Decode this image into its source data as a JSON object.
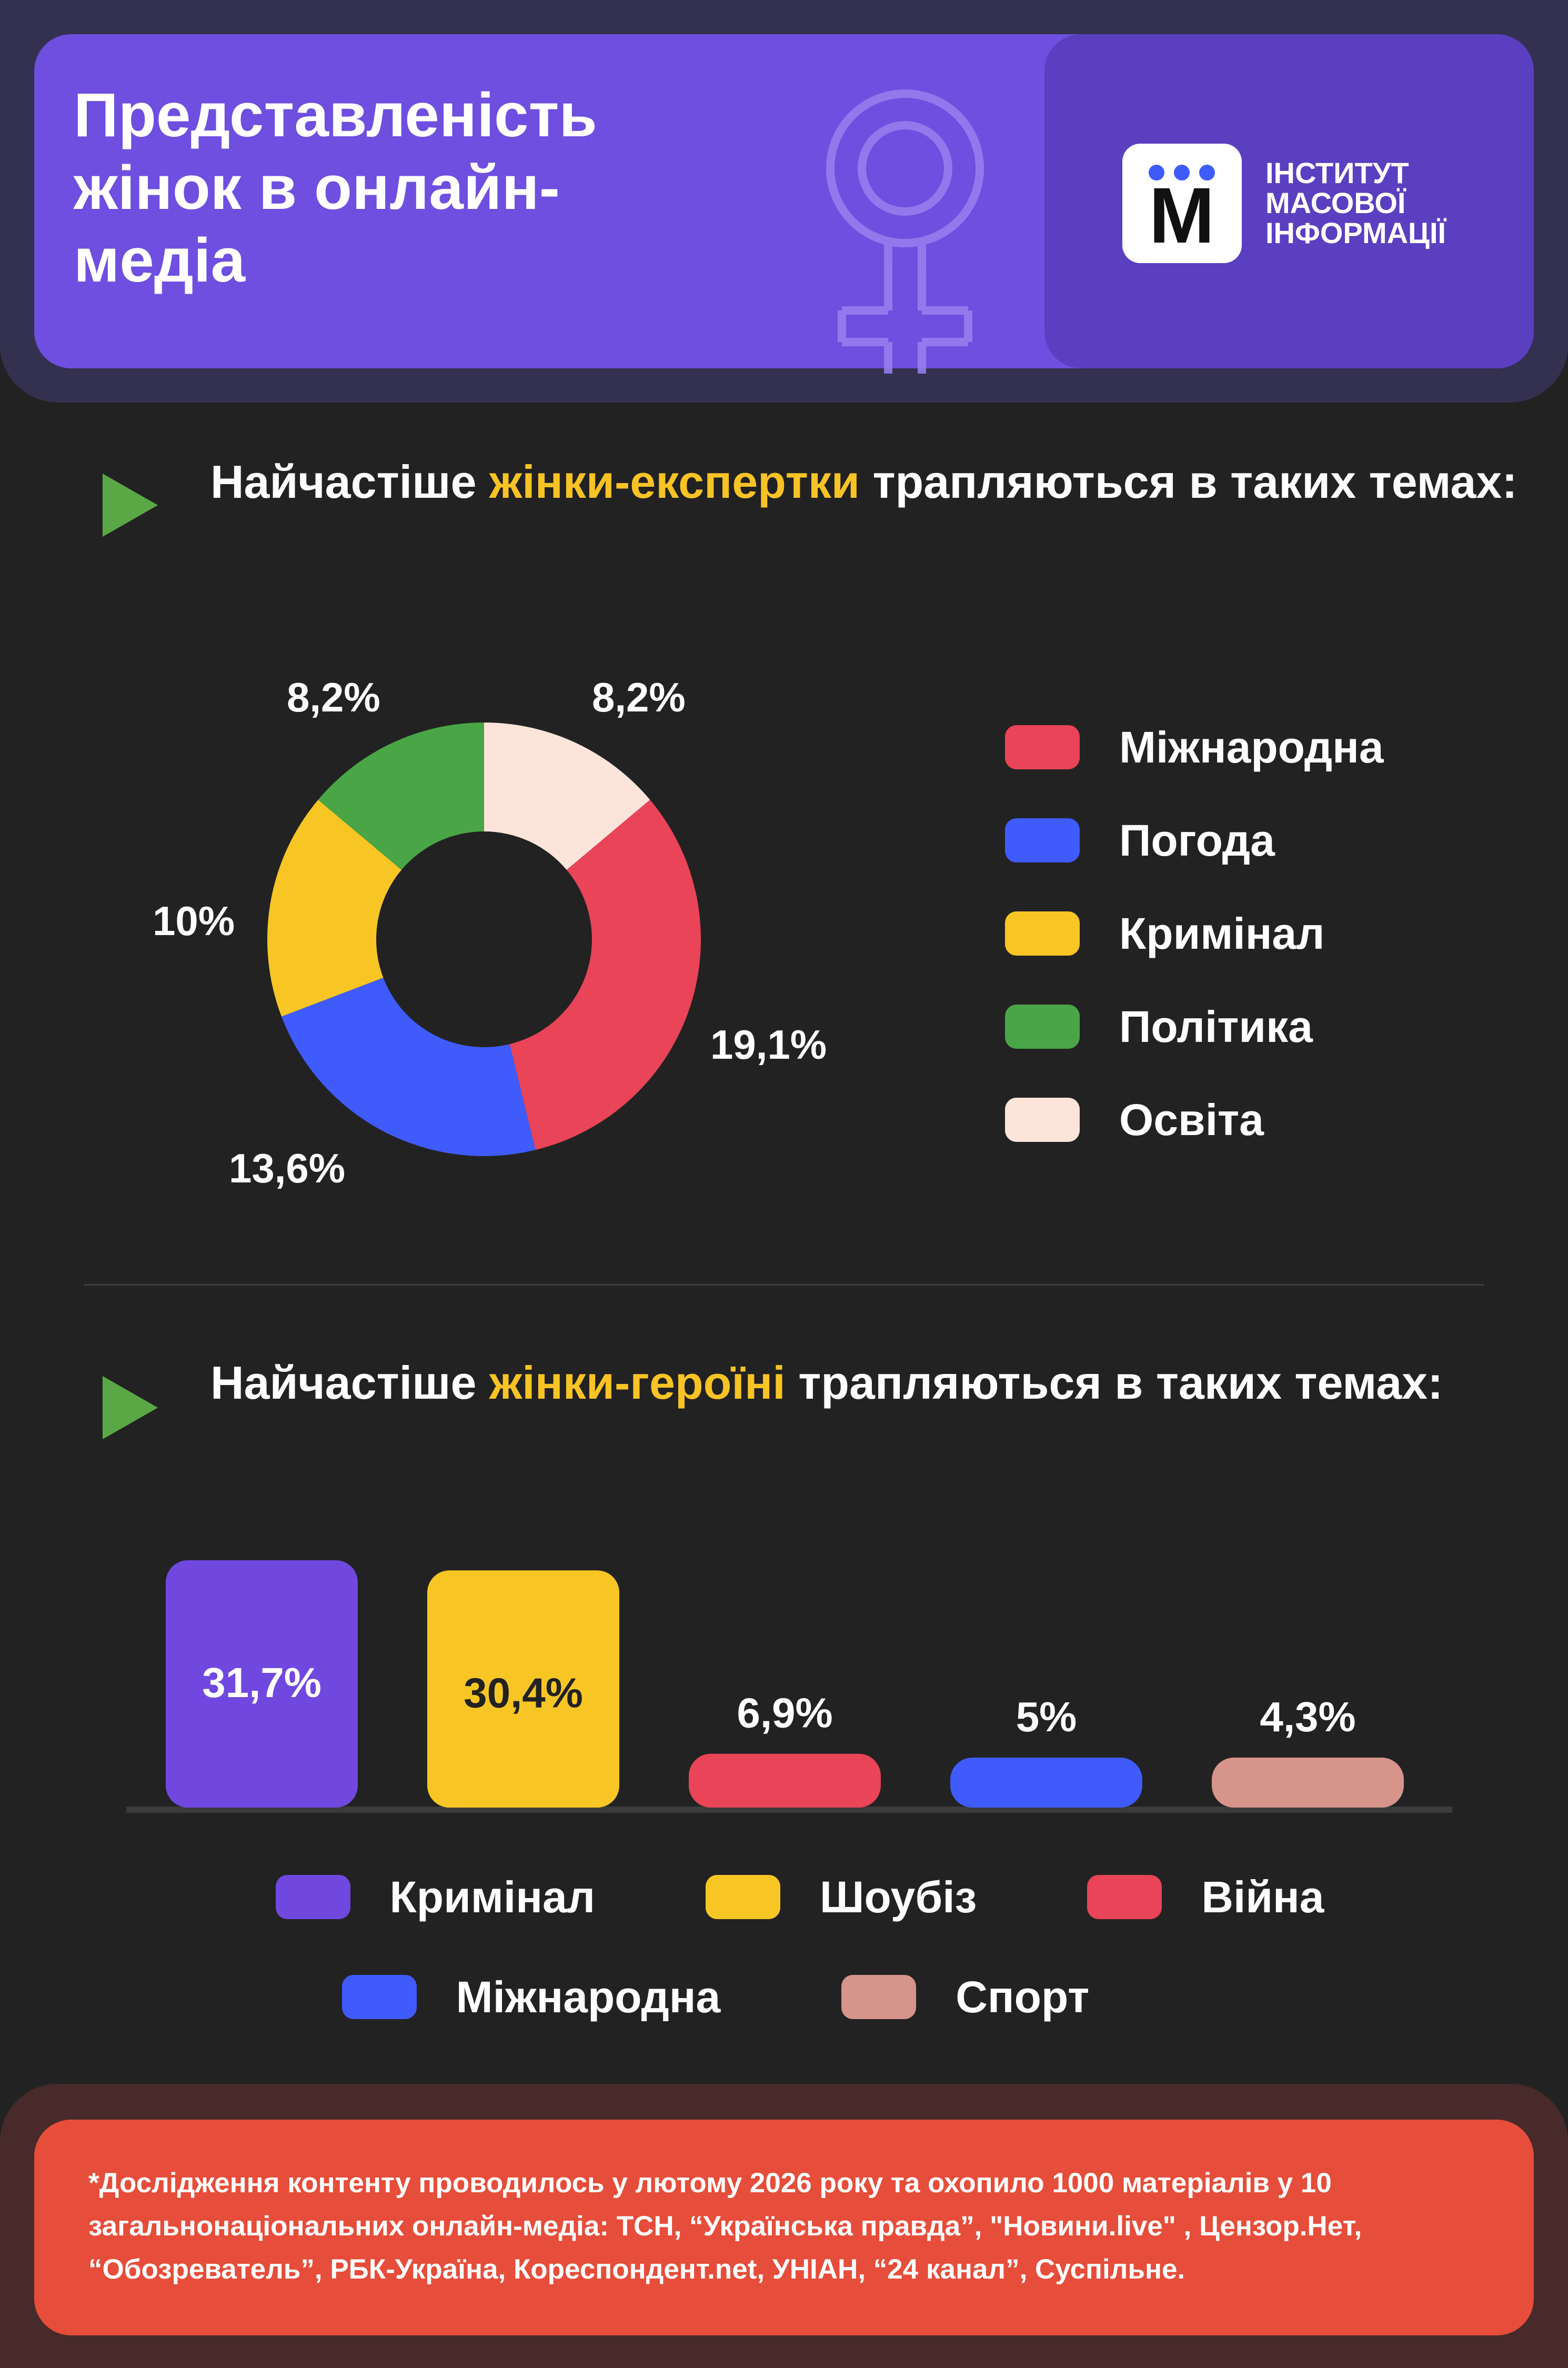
{
  "header": {
    "title": "Представленість\nжінок в онлайн-\nмедіа",
    "logo_letter": "M",
    "logo_text": [
      "ІНСТИТУТ",
      "МАСОВОЇ",
      "ІНФОРМАЦІЇ"
    ]
  },
  "section1": {
    "heading_pre": "Найчастіше ",
    "heading_highlight": "жінки-експертки",
    "heading_post": " трапляються в таких темах:"
  },
  "section2": {
    "heading_pre": "Найчастіше ",
    "heading_highlight": "жінки-героїні",
    "heading_post": " трапляються в таких темах:"
  },
  "chart_data": [
    {
      "type": "pie",
      "categories": [
        "Міжнародна",
        "Погода",
        "Кримінал",
        "Політика",
        "Освіта"
      ],
      "values": [
        19.1,
        13.6,
        10,
        8.2,
        8.2
      ],
      "value_labels": [
        "19,1%",
        "13,6%",
        "10%",
        "8,2%",
        "8,2%"
      ],
      "colors": [
        "#e94457",
        "#3f5bfb",
        "#f7c625",
        "#4aa546",
        "#fde4da"
      ],
      "legend_position": "right"
    },
    {
      "type": "bar",
      "categories": [
        "Кримінал",
        "Шоубіз",
        "Війна",
        "Міжнародна",
        "Спорт"
      ],
      "values": [
        31.7,
        30.4,
        6.9,
        5,
        4.3
      ],
      "value_labels": [
        "31,7%",
        "30,4%",
        "6,9%",
        "5%",
        "4,3%"
      ],
      "colors": [
        "#7048e0",
        "#f7c625",
        "#e94457",
        "#3f5bfb",
        "#d6948a"
      ],
      "legend_position": "bottom"
    }
  ],
  "footnote": "*Дослідження контенту проводилось у лютому 2026 року та охопило 1000 матеріалів у 10 загальнонаціональних онлайн-медіа: ТСН, “Українська правда”, \"Новини.live\" , Цензор.Нет, “Обозреватель”, РБК-Україна, Кореспондент.net, УНІАН, “24 канал”, Суспільне."
}
